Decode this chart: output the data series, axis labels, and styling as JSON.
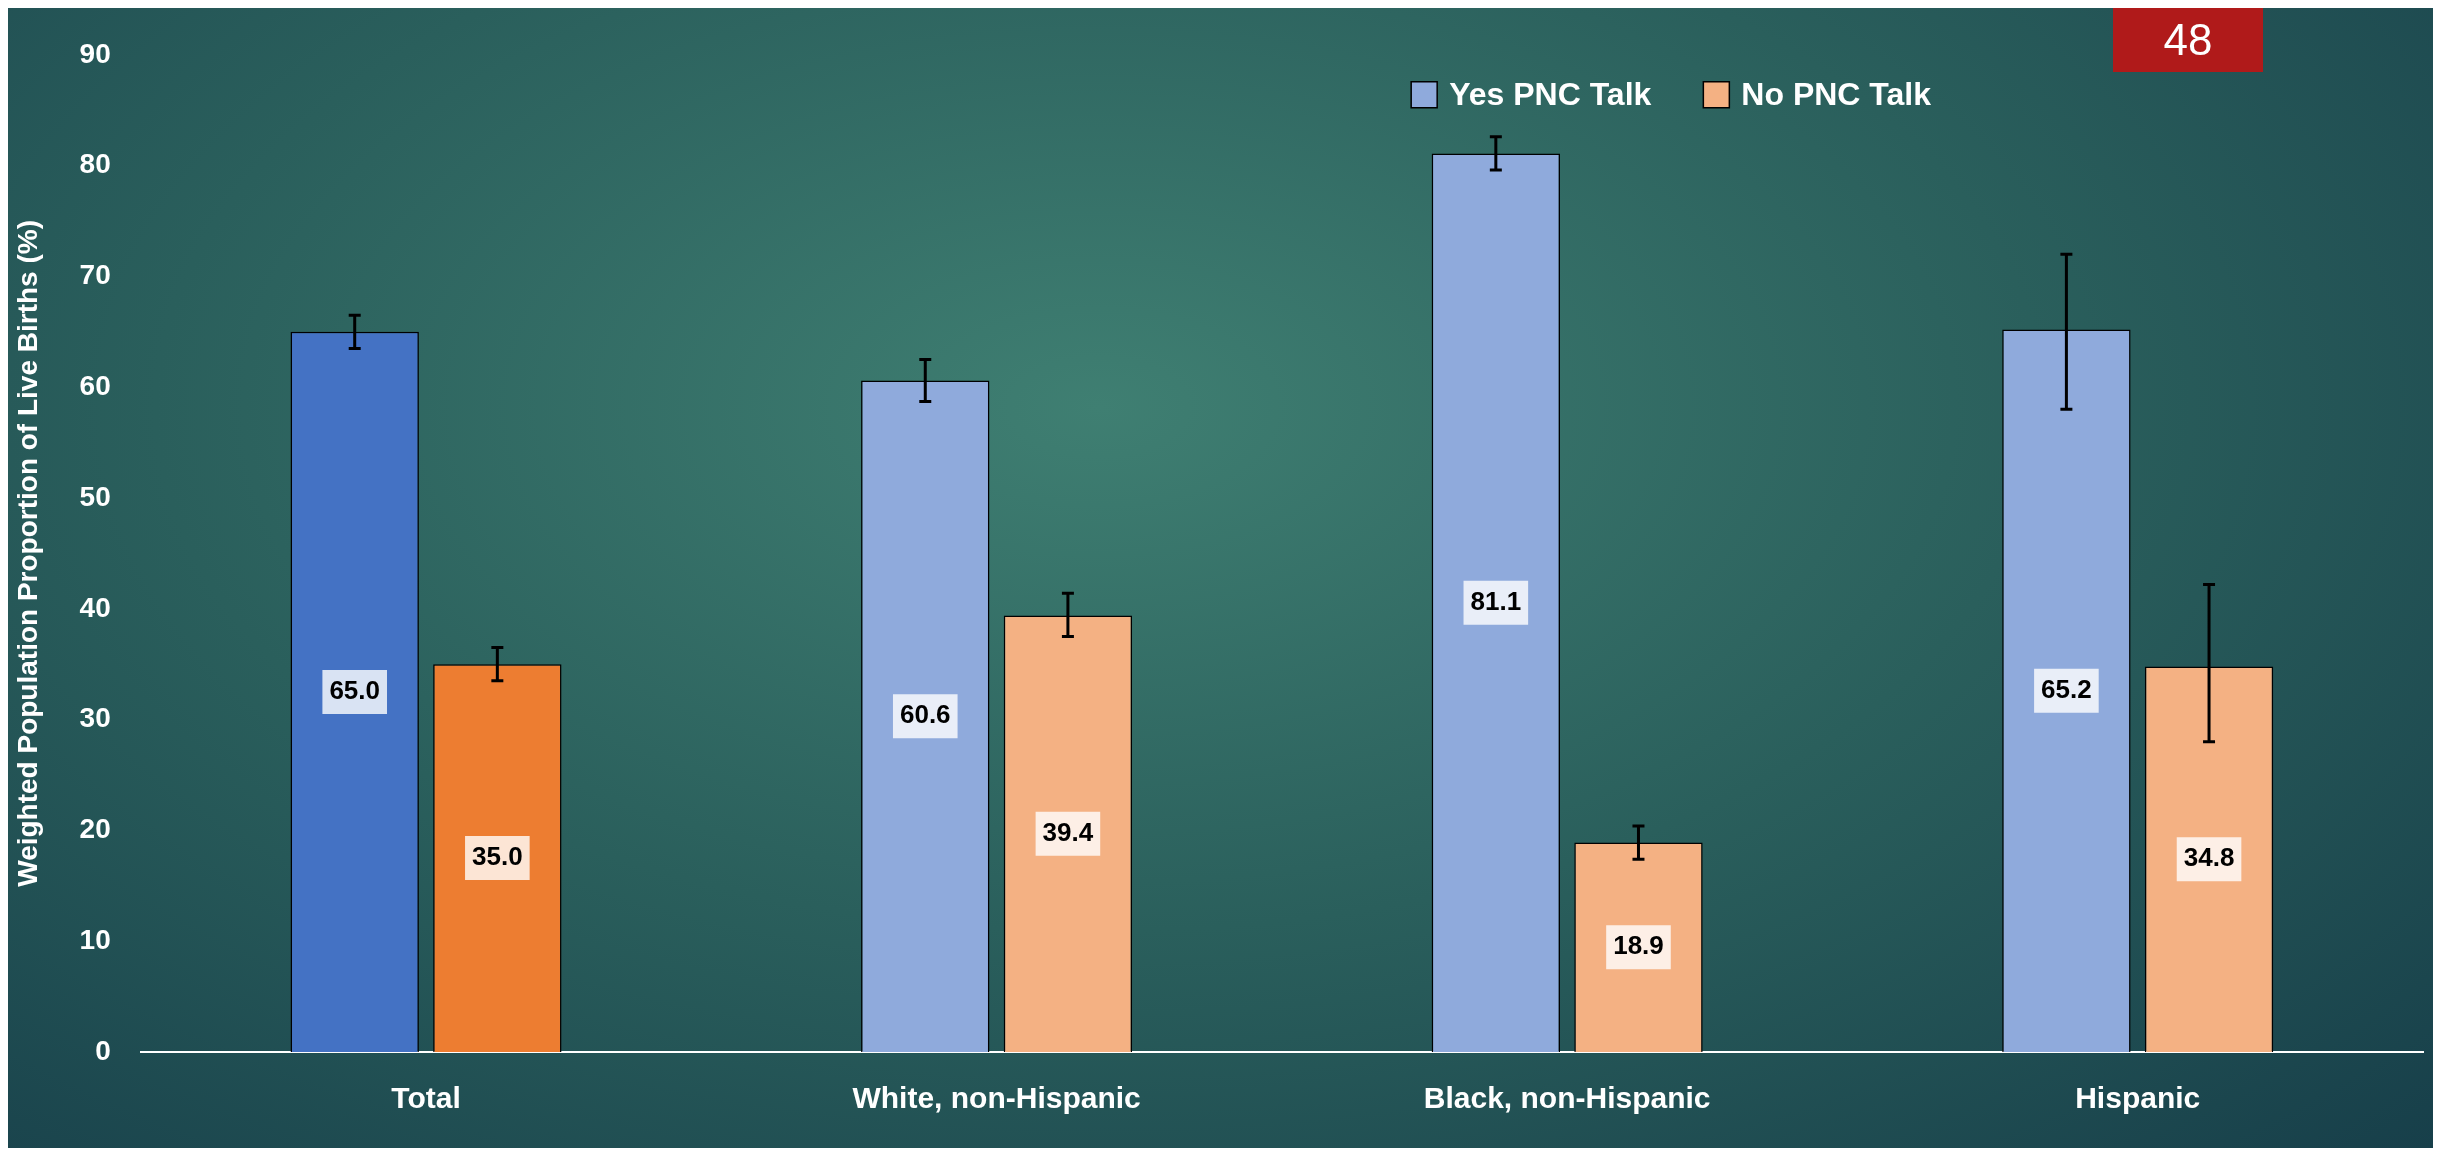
{
  "chart_data": {
    "type": "bar",
    "ylabel": "Weighted Population Proportion of Live Births (%)",
    "categories": [
      "Total",
      "White, non-Hispanic",
      "Black, non-Hispanic",
      "Hispanic"
    ],
    "series": [
      {
        "name": "Yes PNC Talk",
        "color": "#8faadc",
        "colors": [
          "#4472c4",
          "#8faadc",
          "#8faadc",
          "#8faadc"
        ],
        "values": [
          65.0,
          60.6,
          81.1,
          65.2
        ],
        "value_labels": [
          "65.0",
          "60.6",
          "81.1",
          "65.2"
        ],
        "errors": [
          [
            63.5,
            66.5
          ],
          [
            58.7,
            62.5
          ],
          [
            79.6,
            82.6
          ],
          [
            58.0,
            72.0
          ]
        ]
      },
      {
        "name": "No PNC Talk",
        "color": "#f4b183",
        "colors": [
          "#ed7d31",
          "#f4b183",
          "#f4b183",
          "#f4b183"
        ],
        "values": [
          35.0,
          39.4,
          18.9,
          34.8
        ],
        "value_labels": [
          "35.0",
          "39.4",
          "18.9",
          "34.8"
        ],
        "errors": [
          [
            33.5,
            36.5
          ],
          [
            37.5,
            41.4
          ],
          [
            17.4,
            20.4
          ],
          [
            28.0,
            42.2
          ]
        ]
      }
    ],
    "ylim": [
      0,
      90
    ],
    "yticks": [
      0,
      10,
      20,
      30,
      40,
      50,
      60,
      70,
      80,
      90
    ],
    "grid": false,
    "legend": "top right",
    "annotations": [
      "48"
    ]
  }
}
